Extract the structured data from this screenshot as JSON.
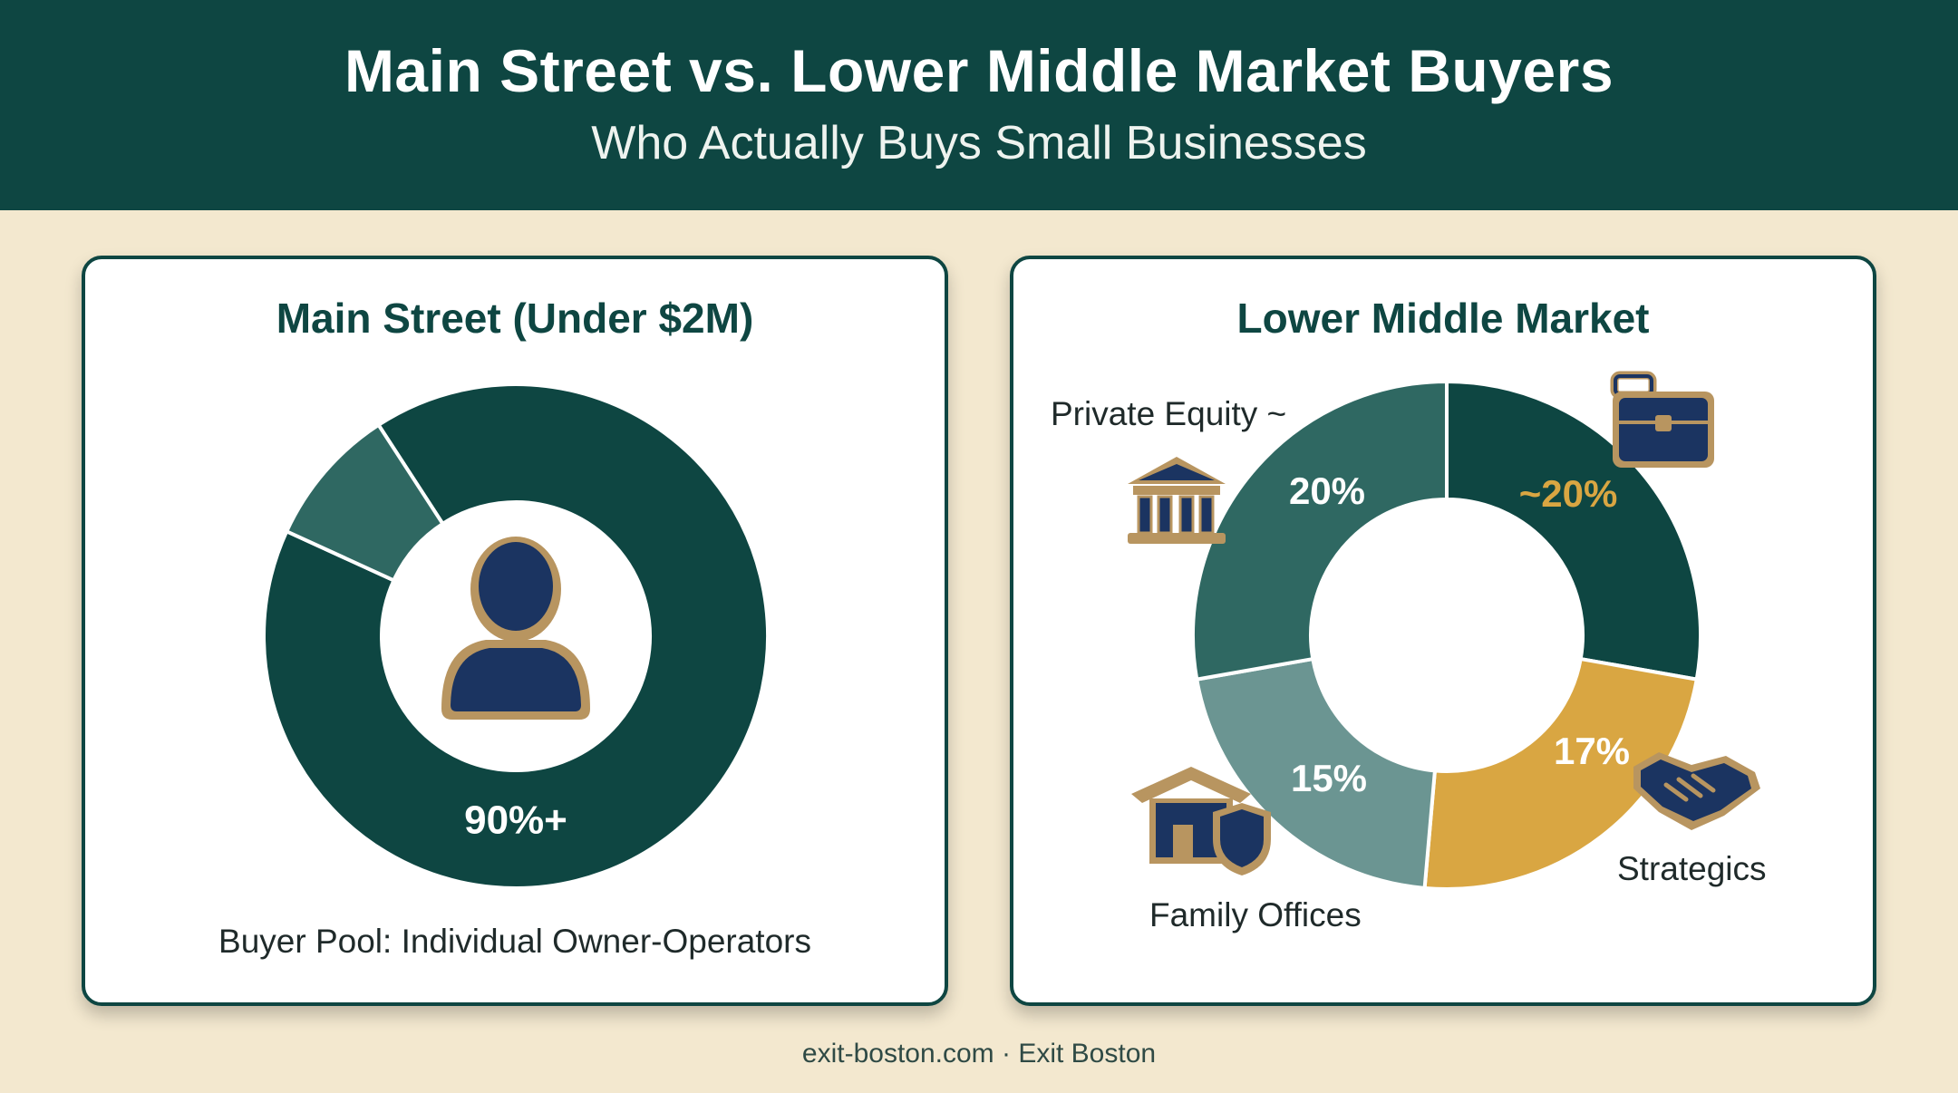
{
  "header": {
    "title": "Main Street vs. Lower Middle Market Buyers",
    "subtitle": "Who Actually Buys Small Businesses"
  },
  "footer": {
    "text": "exit-boston.com · Exit Boston"
  },
  "colors": {
    "header_bg": "#0e4642",
    "background": "#f3e8cf",
    "dark_green": "#0e4642",
    "teal": "#2f6862",
    "light_teal": "#6b9592",
    "gold": "#d9a642",
    "icon_navy": "#1b3461",
    "icon_gold": "#b89560"
  },
  "chart_data": [
    {
      "type": "pie",
      "donut": true,
      "title": "Main Street (Under $2M)",
      "caption": "Buyer Pool: Individual Owner-Operators",
      "center_icon": "person-icon",
      "slices": [
        {
          "value": 91,
          "label": "90%+",
          "color": "#0e4642"
        },
        {
          "value": 9,
          "label": "",
          "color": "#2f6862"
        }
      ]
    },
    {
      "type": "pie",
      "donut": true,
      "title": "Lower Middle Market",
      "slices": [
        {
          "value": 20,
          "label": "~20%",
          "category": "",
          "color": "#0e4642",
          "label_color": "#d9a642",
          "icon": "briefcase-icon"
        },
        {
          "value": 17,
          "label": "17%",
          "category": "Strategics",
          "color": "#d9a642",
          "label_color": "#ffffff",
          "icon": "handshake-icon"
        },
        {
          "value": 15,
          "label": "15%",
          "category": "Family Offices",
          "color": "#6b9592",
          "label_color": "#ffffff",
          "icon": "house-shield-icon"
        },
        {
          "value": 20,
          "label": "20%",
          "category": "Private Equity ~",
          "color": "#2f6862",
          "label_color": "#ffffff",
          "icon": "bank-icon"
        }
      ]
    }
  ]
}
